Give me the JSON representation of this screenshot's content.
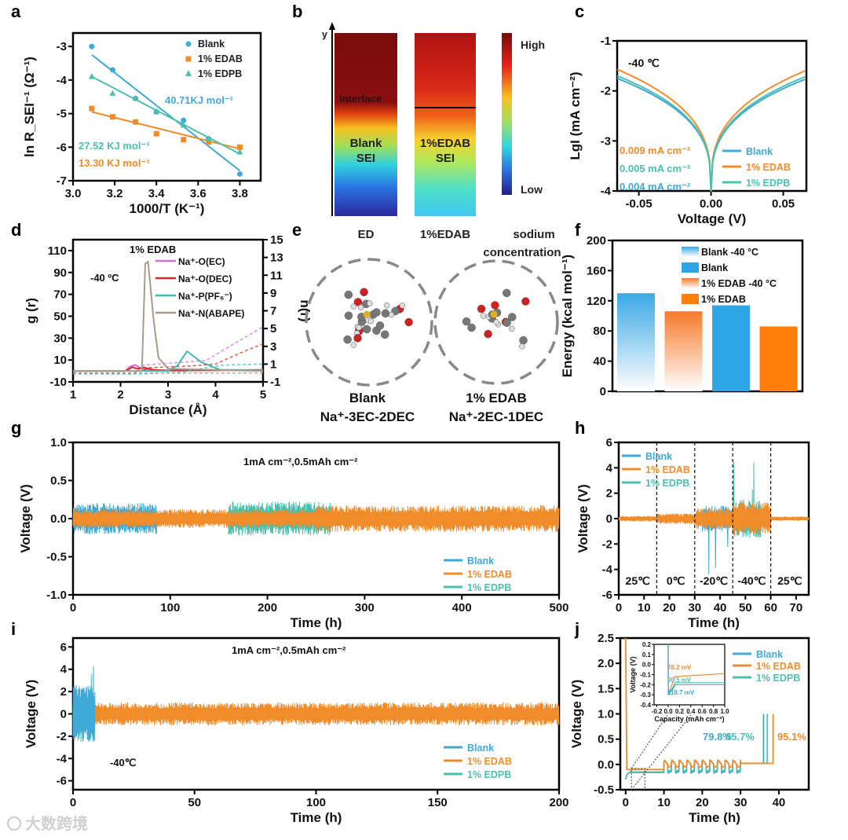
{
  "panel_labels": [
    "a",
    "b",
    "c",
    "d",
    "e",
    "f",
    "g",
    "h",
    "i",
    "j"
  ],
  "colors": {
    "blank": "#3fa9d8",
    "edab": "#f08c2a",
    "edpb": "#4dbfae"
  },
  "watermark": "大数跨境",
  "panel_b": {
    "axis_label": "y",
    "interface_label": "Interface",
    "blank_label_1": "Blank",
    "blank_label_2": "SEI",
    "edab_label_1": "1%EDAB",
    "edab_label_2": "SEI",
    "col_labels": [
      "ED",
      "1%EDAB",
      "sodium",
      "concentration"
    ],
    "colorbar_high": "High",
    "colorbar_low": "Low"
  },
  "panel_e": {
    "left_label_1": "Blank",
    "left_label_2": "Na⁺-3EC-2DEC",
    "right_label_1": "1% EDAB",
    "right_label_2": "Na⁺-2EC-1DEC"
  },
  "chart_data": [
    {
      "id": "a",
      "type": "scatter",
      "xlabel": "1000/T (K⁻¹)",
      "ylabel": "ln R_SEI⁻¹ (Ω⁻¹)",
      "xlim": [
        3.0,
        3.9
      ],
      "ylim": [
        -7,
        -2.6
      ],
      "xticks": [
        "3.0",
        "3.2",
        "3.4",
        "3.6",
        "3.8"
      ],
      "yticks": [
        "-7",
        "-6",
        "-5",
        "-4",
        "-3"
      ],
      "series": [
        {
          "name": "Blank",
          "marker": "circle",
          "x": [
            3.09,
            3.19,
            3.3,
            3.4,
            3.53,
            3.65,
            3.8
          ],
          "y": [
            -3.0,
            -3.7,
            -4.55,
            -4.95,
            -5.2,
            -5.75,
            -6.8
          ],
          "fit": [
            [
              3.09,
              -3.25
            ],
            [
              3.8,
              -6.7
            ]
          ]
        },
        {
          "name": "1% EDAB",
          "marker": "square",
          "x": [
            3.09,
            3.19,
            3.3,
            3.4,
            3.53,
            3.65,
            3.8
          ],
          "y": [
            -4.85,
            -5.1,
            -5.25,
            -5.6,
            -5.78,
            -5.85,
            -6.0
          ],
          "fit": [
            [
              3.09,
              -4.95
            ],
            [
              3.8,
              -6.05
            ]
          ]
        },
        {
          "name": "1% EDPB",
          "marker": "triangle",
          "x": [
            3.09,
            3.19,
            3.3,
            3.4,
            3.53,
            3.65,
            3.8
          ],
          "y": [
            -3.9,
            -4.4,
            -4.55,
            -4.95,
            -5.35,
            -5.75,
            -6.15
          ],
          "fit": [
            [
              3.09,
              -3.9
            ],
            [
              3.8,
              -6.2
            ]
          ]
        }
      ],
      "annotations": [
        "40.71KJ mol⁻¹",
        "27.52 KJ mol⁻¹",
        "13.30 KJ mol⁻¹"
      ]
    },
    {
      "id": "c",
      "type": "line",
      "xlabel": "Voltage (V)",
      "ylabel": "LgI (mA cm⁻²)",
      "xlim": [
        -0.065,
        0.066
      ],
      "ylim": [
        -4,
        -1
      ],
      "xticks": [
        "-0.05",
        "0.00",
        "0.05"
      ],
      "yticks": [
        "-4",
        "-3",
        "-2",
        "-1"
      ],
      "note": "-40 ℃",
      "series": [
        {
          "name": "Blank",
          "left_end": -1.75,
          "right_end": -1.77,
          "exchange_current": "0.004 mA cm⁻²"
        },
        {
          "name": "1% EDAB",
          "left_end": -1.57,
          "right_end": -1.6,
          "exchange_current": "0.009 mA cm⁻²"
        },
        {
          "name": "1% EDPB",
          "left_end": -1.7,
          "right_end": -1.72,
          "exchange_current": "0.005 mA cm⁻²"
        }
      ]
    },
    {
      "id": "d",
      "type": "line",
      "xlabel": "Distance (Å)",
      "ylabel": "g (r)",
      "y2label": "n(r)",
      "title": "1% EDAB",
      "note": "-40 ºC",
      "xlim": [
        1,
        5
      ],
      "ylim": [
        -10,
        120
      ],
      "y2lim": [
        -1,
        15
      ],
      "xticks": [
        "1",
        "2",
        "3",
        "4",
        "5"
      ],
      "yticks": [
        "-10",
        "10",
        "30",
        "50",
        "70",
        "90",
        "110"
      ],
      "y2ticks": [
        "-1",
        "1",
        "3",
        "5",
        "7",
        "9",
        "11",
        "13",
        "15"
      ],
      "series": [
        {
          "name": "Na⁺-O(EC)",
          "color": "#d46fd8",
          "g": [
            [
              1,
              0
            ],
            [
              2.1,
              0
            ],
            [
              2.2,
              4
            ],
            [
              2.3,
              5.5
            ],
            [
              2.4,
              3
            ],
            [
              2.5,
              1
            ],
            [
              3,
              0.5
            ],
            [
              5,
              1
            ]
          ],
          "n": [
            [
              1,
              0
            ],
            [
              2.3,
              0
            ],
            [
              2.5,
              0.9
            ],
            [
              3,
              1.1
            ],
            [
              3.8,
              1.4
            ],
            [
              4.3,
              3
            ],
            [
              5,
              5.2
            ]
          ]
        },
        {
          "name": "Na⁺-O(DEC)",
          "color": "#d92b2b",
          "g": [
            [
              1,
              0
            ],
            [
              2.1,
              0
            ],
            [
              2.25,
              3.5
            ],
            [
              2.35,
              2
            ],
            [
              2.5,
              3
            ],
            [
              2.7,
              1
            ],
            [
              3,
              0.3
            ],
            [
              5,
              0.8
            ]
          ],
          "n": [
            [
              1,
              0
            ],
            [
              2.3,
              0
            ],
            [
              2.6,
              0.6
            ],
            [
              3.5,
              0.8
            ],
            [
              4,
              1
            ],
            [
              4.5,
              2.2
            ],
            [
              5,
              3.3
            ]
          ]
        },
        {
          "name": "Na⁺-P(PF₆⁻)",
          "color": "#3cbcb0",
          "g": [
            [
              1,
              0
            ],
            [
              3,
              0
            ],
            [
              3.2,
              5
            ],
            [
              3.4,
              18
            ],
            [
              3.7,
              8
            ],
            [
              4.1,
              1
            ],
            [
              5,
              0.5
            ]
          ],
          "n": [
            [
              1,
              -0.1
            ],
            [
              2.5,
              -0.1
            ],
            [
              3.3,
              0.1
            ],
            [
              3.8,
              0.6
            ],
            [
              4.2,
              0.9
            ],
            [
              5,
              1
            ]
          ]
        },
        {
          "name": "Na⁺-N(ABAPE)",
          "color": "#a89a8c",
          "g": [
            [
              1,
              0
            ],
            [
              2.45,
              0
            ],
            [
              2.52,
              98
            ],
            [
              2.58,
              100
            ],
            [
              2.7,
              45
            ],
            [
              2.8,
              12
            ],
            [
              3,
              2
            ],
            [
              5,
              0
            ]
          ],
          "n": [
            [
              1,
              0
            ],
            [
              5,
              0
            ]
          ]
        }
      ]
    },
    {
      "id": "f",
      "type": "bar",
      "ylabel": "Energy (kcal mol⁻¹)",
      "ylim": [
        0,
        200
      ],
      "yticks": [
        "0",
        "40",
        "80",
        "120",
        "160",
        "200"
      ],
      "categories": [
        "Blank -40 °C",
        "1% EDAB -40 °C",
        "Blank",
        "1% EDAB"
      ],
      "values": [
        130,
        106,
        114,
        86
      ],
      "legend_order": [
        "Blank -40 °C",
        "Blank",
        "1% EDAB -40 °C",
        "1% EDAB"
      ]
    },
    {
      "id": "g",
      "type": "line",
      "xlabel": "Time (h)",
      "ylabel": "Voltage (V)",
      "note": "1mA cm⁻²,0.5mAh cm⁻²",
      "xlim": [
        0,
        500
      ],
      "ylim": [
        -1,
        1
      ],
      "xticks": [
        "0",
        "100",
        "200",
        "300",
        "400",
        "500"
      ],
      "yticks": [
        "-1.0",
        "-0.5",
        "0.0",
        "0.5",
        "1.0"
      ],
      "legend": [
        "Blank",
        "1% EDAB",
        "1% EDPB"
      ],
      "segments": [
        {
          "series": "Blank",
          "from": 0,
          "to": 86,
          "amp": 0.2
        },
        {
          "series": "1% EDPB",
          "from": 160,
          "to": 265,
          "amp": 0.22
        },
        {
          "series": "1% EDAB",
          "from": 0,
          "to": 250,
          "amp": 0.12
        },
        {
          "series": "1% EDAB",
          "from": 250,
          "to": 500,
          "amp": 0.17
        }
      ]
    },
    {
      "id": "h",
      "type": "line",
      "xlabel": "Time (h)",
      "ylabel": "Voltage (V)",
      "xlim": [
        0,
        75
      ],
      "ylim": [
        -6,
        6
      ],
      "xticks": [
        "0",
        "10",
        "20",
        "30",
        "40",
        "50",
        "60",
        "70"
      ],
      "yticks": [
        "-6",
        "-4",
        "-2",
        "0",
        "2",
        "4",
        "6"
      ],
      "legend": [
        "Blank",
        "1% EDAB",
        "1% EDPB"
      ],
      "temperature_boundaries": [
        15,
        30,
        45,
        60
      ],
      "temperature_labels": [
        "25℃",
        "0℃",
        "-20℃",
        "-40℃",
        "25℃"
      ],
      "segments": [
        {
          "series": "1% EDAB",
          "from": 0,
          "to": 15,
          "amp": 0.2
        },
        {
          "series": "1% EDAB",
          "from": 15,
          "to": 30,
          "amp": 0.4
        },
        {
          "series": "Blank",
          "from": 33,
          "to": 45,
          "amp": 1.0,
          "spike_min": -5
        },
        {
          "series": "1% EDAB",
          "from": 30,
          "to": 45,
          "amp": 0.8
        },
        {
          "series": "1% EDPB",
          "from": 45,
          "to": 56,
          "amp": 1.5,
          "spike_max": 5
        },
        {
          "series": "1% EDAB",
          "from": 45,
          "to": 60,
          "amp": 1.3
        },
        {
          "series": "1% EDAB",
          "from": 60,
          "to": 75,
          "amp": 0.15
        }
      ]
    },
    {
      "id": "i",
      "type": "line",
      "xlabel": "Time (h)",
      "ylabel": "Voltage (V)",
      "note": "1mA cm⁻²,0.5mAh cm⁻²",
      "note2": "-40℃",
      "xlim": [
        0,
        200
      ],
      "ylim": [
        -6.8,
        6.8
      ],
      "xticks": [
        "0",
        "50",
        "100",
        "150",
        "200"
      ],
      "yticks": [
        "-6",
        "-4",
        "-2",
        "0",
        "2",
        "4",
        "6"
      ],
      "legend": [
        "Blank",
        "1% EDAB",
        "1% EDPB"
      ],
      "segments": [
        {
          "series": "Blank",
          "from": 0,
          "to": 9,
          "amp": 2.5,
          "spike_max": 5
        },
        {
          "series": "1% EDPB",
          "from": 0,
          "to": 9,
          "amp": 2.5,
          "spike_max": 5
        },
        {
          "series": "1% EDAB",
          "from": 0,
          "to": 200,
          "amp": 1.0
        }
      ]
    },
    {
      "id": "j",
      "type": "line",
      "xlabel": "Time (h)",
      "ylabel": "Voltage (V)",
      "xlim": [
        -1.4,
        47.8
      ],
      "ylim": [
        -0.5,
        2.5
      ],
      "xticks": [
        "0",
        "10",
        "20",
        "30",
        "40"
      ],
      "yticks": [
        "-0.5",
        "0.0",
        "0.5",
        "1.0",
        "1.5",
        "2.0",
        "2.5"
      ],
      "legend": [
        "Blank",
        "1% EDAB",
        "1% EDPB"
      ],
      "efficiencies": [
        {
          "series": "Blank",
          "text": "79.8%"
        },
        {
          "series": "1% EDPB",
          "text": "85.7%"
        },
        {
          "series": "1% EDAB",
          "text": "95.1%"
        }
      ],
      "series": [
        {
          "name": "Blank",
          "plate": -0.16,
          "cycle_low": -0.17,
          "final_end": 36
        },
        {
          "name": "1% EDPB",
          "plate": -0.15,
          "cycle_low": -0.14,
          "final_end": 37
        },
        {
          "name": "1% EDAB",
          "plate": -0.1,
          "cycle_low": -0.06,
          "final_end": 38.5
        }
      ],
      "inset": {
        "xlabel": "Capacity (mAh cm⁻²)",
        "ylabel": "Voltage (V)",
        "xlim": [
          -0.25,
          1.0
        ],
        "ylim": [
          -0.4,
          0.2
        ],
        "xticks": [
          "-0.2",
          "0.0",
          "0.2",
          "0.4",
          "0.6",
          "0.8",
          "1.0"
        ],
        "yticks": [
          "-0.4",
          "-0.3",
          "-0.2",
          "-0.1",
          "0.0",
          "0.1",
          "0.2"
        ],
        "overpotentials": [
          {
            "series": "1% EDAB",
            "text": "78.2 mV"
          },
          {
            "series": "1% EDPB",
            "text": "90.5 mV"
          },
          {
            "series": "Blank",
            "text": "118.7 mV"
          }
        ]
      }
    }
  ]
}
